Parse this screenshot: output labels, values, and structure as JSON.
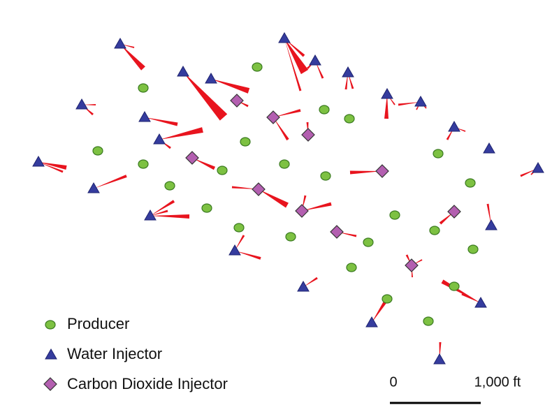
{
  "legend": {
    "items": [
      "Producer",
      "Water Injector",
      "Carbon Dioxide Injector"
    ]
  },
  "scale_bar": {
    "start_label": "0",
    "end_label": "1,000 ft"
  }
}
